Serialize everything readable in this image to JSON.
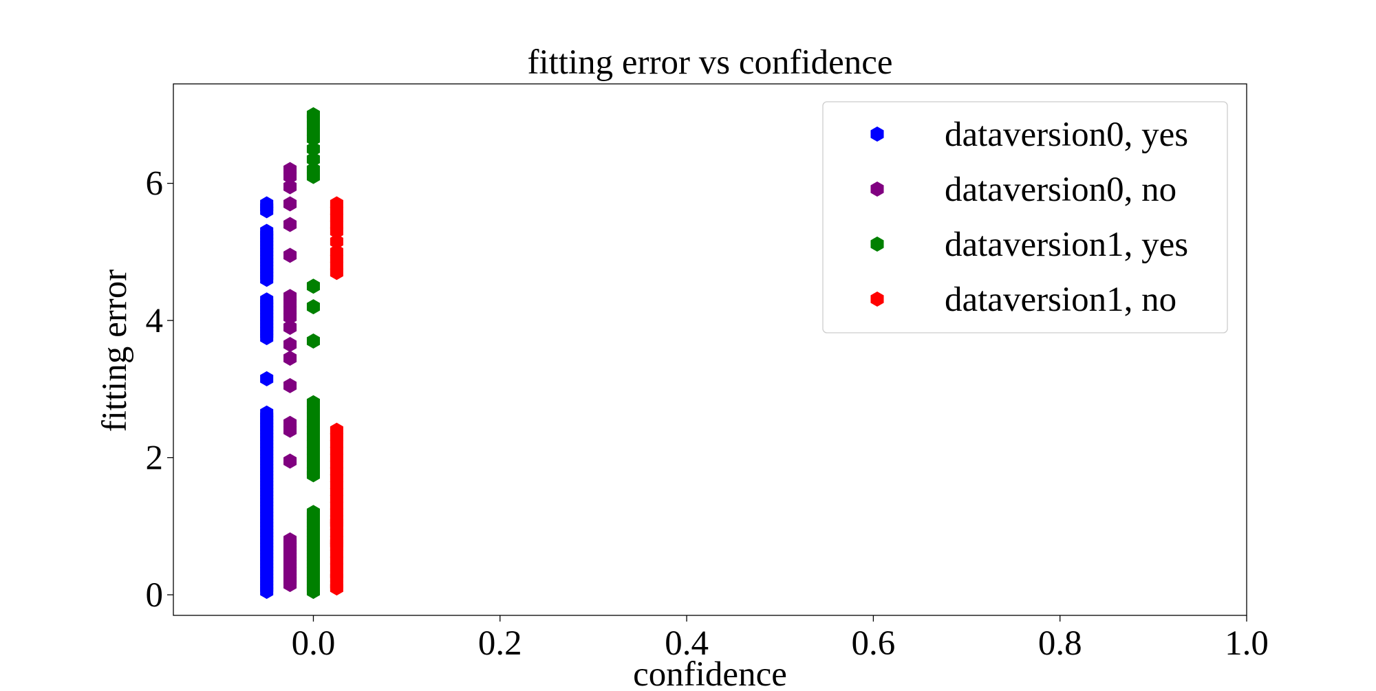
{
  "chart_data": {
    "type": "scatter",
    "title": "fitting error vs confidence",
    "xlabel": "confidence",
    "ylabel": "fitting error",
    "xlim": [
      -0.15,
      1.0
    ],
    "ylim": [
      -0.3,
      7.45
    ],
    "xticks": [
      0.0,
      0.2,
      0.4,
      0.6,
      0.8,
      1.0
    ],
    "xtick_labels": [
      "0.0",
      "0.2",
      "0.4",
      "0.6",
      "0.8",
      "1.0"
    ],
    "yticks": [
      0,
      2,
      4,
      6
    ],
    "ytick_labels": [
      "0",
      "2",
      "4",
      "6"
    ],
    "grid": false,
    "marker": "hexagon",
    "legend": {
      "placement": "top-right",
      "entries": [
        "dataversion0, yes",
        "dataversion0, no",
        "dataversion1, yes",
        "dataversion1, no"
      ]
    },
    "series": [
      {
        "name": "dataversion0, yes",
        "color": "#0000ff",
        "x": -0.05,
        "y": [
          0.05,
          0.1,
          0.15,
          0.2,
          0.25,
          0.3,
          0.35,
          0.4,
          0.45,
          0.5,
          0.55,
          0.6,
          0.65,
          0.7,
          0.75,
          0.8,
          0.85,
          0.9,
          0.95,
          1.0,
          1.05,
          1.1,
          1.15,
          1.2,
          1.25,
          1.3,
          1.35,
          1.4,
          1.45,
          1.5,
          1.55,
          1.6,
          1.65,
          1.7,
          1.75,
          1.8,
          1.85,
          1.9,
          1.95,
          2.0,
          2.05,
          2.1,
          2.15,
          2.2,
          2.25,
          2.3,
          2.35,
          2.4,
          2.45,
          2.5,
          2.55,
          2.6,
          2.65,
          3.15,
          3.75,
          3.8,
          3.85,
          3.9,
          3.95,
          4.0,
          4.05,
          4.1,
          4.15,
          4.2,
          4.25,
          4.3,
          4.6,
          4.65,
          4.7,
          4.75,
          4.8,
          4.85,
          4.9,
          4.95,
          5.0,
          5.05,
          5.1,
          5.15,
          5.2,
          5.25,
          5.3,
          5.6,
          5.65,
          5.7
        ]
      },
      {
        "name": "dataversion0, no",
        "color": "#800080",
        "x": -0.025,
        "y": [
          0.15,
          0.2,
          0.25,
          0.3,
          0.35,
          0.4,
          0.45,
          0.5,
          0.55,
          0.6,
          0.65,
          0.7,
          0.75,
          0.8,
          1.95,
          2.4,
          2.5,
          3.05,
          3.45,
          3.65,
          3.9,
          4.05,
          4.15,
          4.25,
          4.35,
          4.95,
          5.4,
          5.7,
          5.95,
          6.1,
          6.2
        ]
      },
      {
        "name": "dataversion1, yes",
        "color": "#008000",
        "x": 0.0,
        "y": [
          0.05,
          0.1,
          0.15,
          0.2,
          0.25,
          0.3,
          0.35,
          0.4,
          0.45,
          0.5,
          0.55,
          0.6,
          0.65,
          0.7,
          0.75,
          0.8,
          0.85,
          0.9,
          0.95,
          1.0,
          1.05,
          1.1,
          1.15,
          1.2,
          1.75,
          1.8,
          1.9,
          2.0,
          2.1,
          2.2,
          2.3,
          2.4,
          2.5,
          2.6,
          2.7,
          2.8,
          3.7,
          4.2,
          4.5,
          6.1,
          6.2,
          6.35,
          6.5,
          6.65,
          6.75,
          6.85,
          6.95,
          7.0
        ]
      },
      {
        "name": "dataversion1, no",
        "color": "#ff0000",
        "x": 0.025,
        "y": [
          0.1,
          0.15,
          0.25,
          0.3,
          0.4,
          0.5,
          0.6,
          0.7,
          0.75,
          0.8,
          0.9,
          1.0,
          1.05,
          1.1,
          1.2,
          1.3,
          1.4,
          1.5,
          1.6,
          1.7,
          1.8,
          1.9,
          2.0,
          2.1,
          2.2,
          2.3,
          2.4,
          4.7,
          4.8,
          4.9,
          5.0,
          5.15,
          5.3,
          5.4,
          5.5,
          5.6,
          5.7
        ]
      }
    ]
  }
}
